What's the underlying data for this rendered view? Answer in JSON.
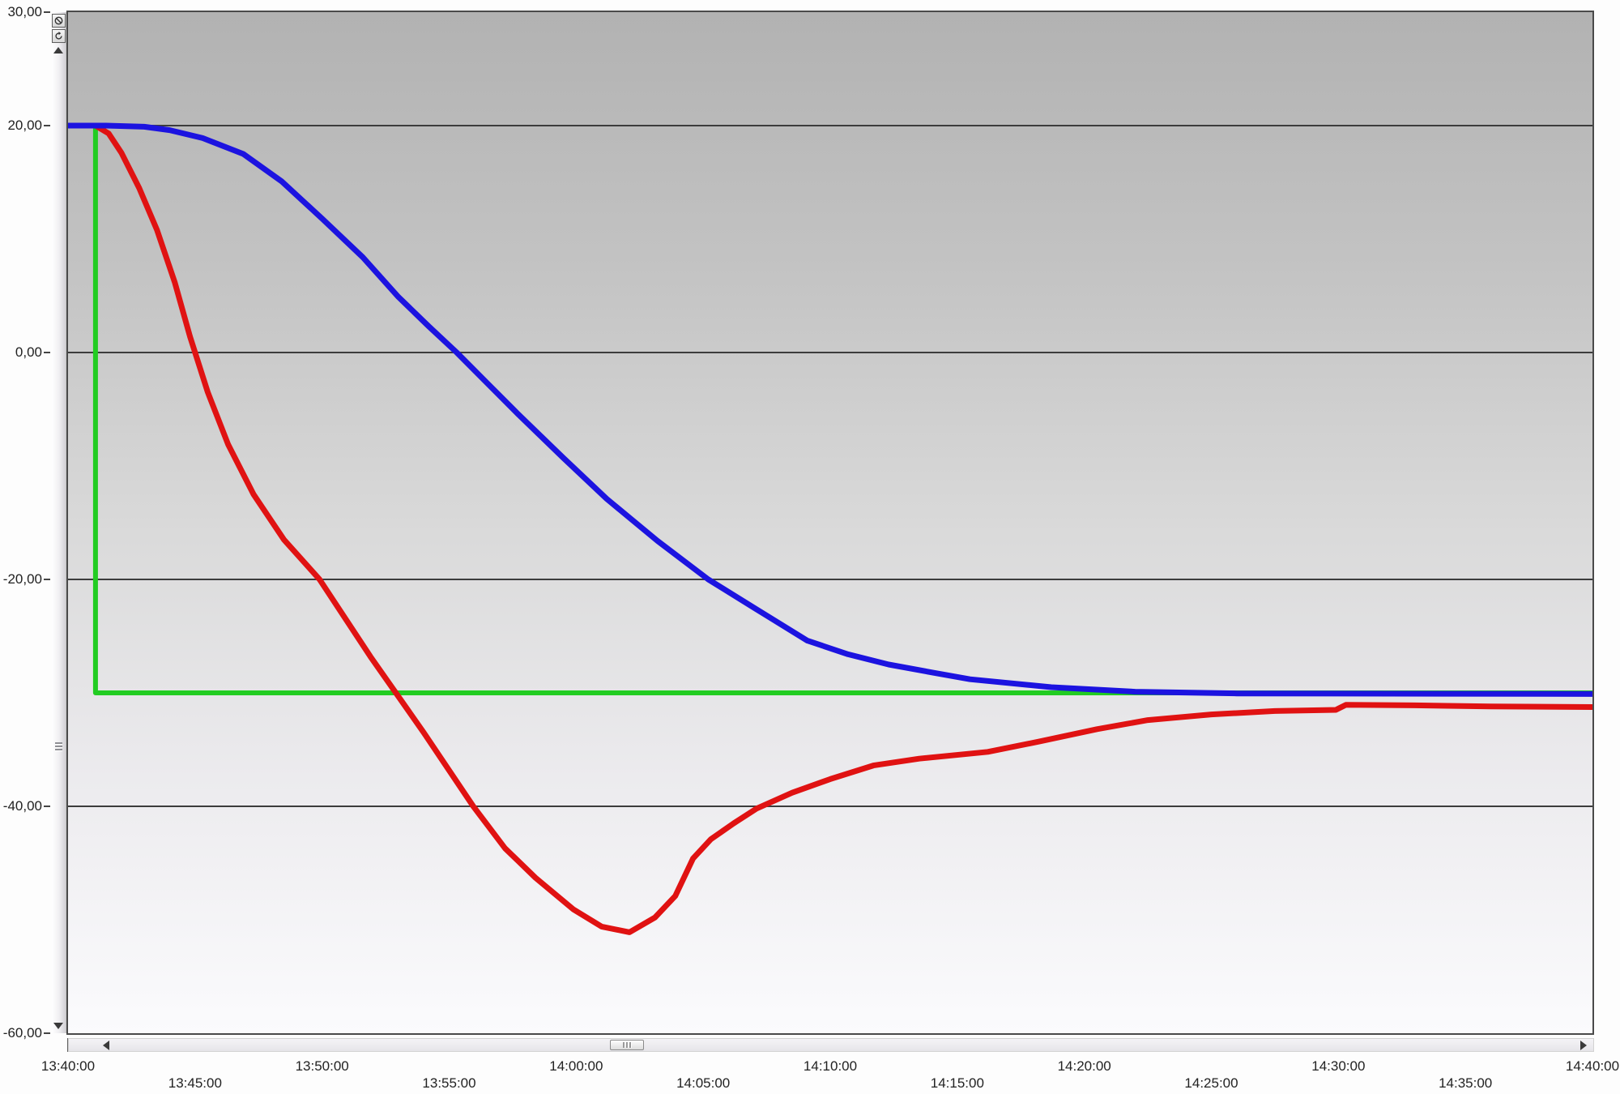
{
  "chart_data": {
    "type": "line",
    "title": "",
    "xlabel": "",
    "ylabel": "",
    "legend": "none",
    "grid": "horizontal",
    "x_axis": {
      "unit": "time",
      "range_start": "13:40:00",
      "range_end": "14:40:00",
      "tick_interval_minutes": 5,
      "ticks": [
        {
          "label": "13:40:00",
          "minutes": 0,
          "row": 1
        },
        {
          "label": "13:45:00",
          "minutes": 5,
          "row": 2
        },
        {
          "label": "13:50:00",
          "minutes": 10,
          "row": 1
        },
        {
          "label": "13:55:00",
          "minutes": 15,
          "row": 2
        },
        {
          "label": "14:00:00",
          "minutes": 20,
          "row": 1
        },
        {
          "label": "14:05:00",
          "minutes": 25,
          "row": 2
        },
        {
          "label": "14:10:00",
          "minutes": 30,
          "row": 1
        },
        {
          "label": "14:15:00",
          "minutes": 35,
          "row": 2
        },
        {
          "label": "14:20:00",
          "minutes": 40,
          "row": 1
        },
        {
          "label": "14:25:00",
          "minutes": 45,
          "row": 2
        },
        {
          "label": "14:30:00",
          "minutes": 50,
          "row": 1
        },
        {
          "label": "14:35:00",
          "minutes": 55,
          "row": 2
        },
        {
          "label": "14:40:00",
          "minutes": 60,
          "row": 1
        }
      ]
    },
    "y_axis": {
      "min": -60,
      "max": 30,
      "ticks": [
        {
          "label": "30,00",
          "value": 30
        },
        {
          "label": "20,00",
          "value": 20
        },
        {
          "label": "0,00",
          "value": 0
        },
        {
          "label": "-20,00",
          "value": -20
        },
        {
          "label": "-40,00",
          "value": -40
        },
        {
          "label": "-60,00",
          "value": -60
        }
      ],
      "gridlines": [
        20,
        0,
        -20,
        -40
      ]
    },
    "series": [
      {
        "name": "green-setpoint-step",
        "color": "#22cc22",
        "width": 6,
        "points": [
          [
            0,
            20
          ],
          [
            1.08,
            20
          ],
          [
            1.08,
            -30
          ],
          [
            60,
            -30
          ]
        ]
      },
      {
        "name": "red-fast-response-curve",
        "color": "#e01212",
        "width": 7,
        "points": [
          [
            0,
            20
          ],
          [
            1.08,
            20
          ],
          [
            1.6,
            19.3
          ],
          [
            2.1,
            17.6
          ],
          [
            2.8,
            14.5
          ],
          [
            3.5,
            10.8
          ],
          [
            4.2,
            6.2
          ],
          [
            4.8,
            1.4
          ],
          [
            5.5,
            -3.5
          ],
          [
            6.3,
            -8.1
          ],
          [
            7.3,
            -12.5
          ],
          [
            8.5,
            -16.5
          ],
          [
            9.9,
            -20
          ],
          [
            11.9,
            -26.8
          ],
          [
            14,
            -33.5
          ],
          [
            15.95,
            -40
          ],
          [
            17.2,
            -43.7
          ],
          [
            18.4,
            -46.3
          ],
          [
            19.9,
            -49.1
          ],
          [
            21,
            -50.6
          ],
          [
            22.1,
            -51.1
          ],
          [
            23.1,
            -49.8
          ],
          [
            23.9,
            -47.9
          ],
          [
            24.6,
            -44.6
          ],
          [
            25.3,
            -42.9
          ],
          [
            26.2,
            -41.5
          ],
          [
            27.1,
            -40.2
          ],
          [
            28.5,
            -38.8
          ],
          [
            30,
            -37.6
          ],
          [
            31.7,
            -36.4
          ],
          [
            33.5,
            -35.8
          ],
          [
            36.2,
            -35.2
          ],
          [
            38.2,
            -34.3
          ],
          [
            40.5,
            -33.2
          ],
          [
            42.5,
            -32.4
          ],
          [
            45,
            -31.9
          ],
          [
            47.5,
            -31.6
          ],
          [
            49.9,
            -31.5
          ],
          [
            50.3,
            -31.05
          ],
          [
            53,
            -31.1
          ],
          [
            56,
            -31.2
          ],
          [
            60,
            -31.25
          ]
        ]
      },
      {
        "name": "blue-slow-response-curve",
        "color": "#1c13e0",
        "width": 7,
        "points": [
          [
            0,
            20
          ],
          [
            1.5,
            20
          ],
          [
            3,
            19.9
          ],
          [
            4,
            19.6
          ],
          [
            5.3,
            18.9
          ],
          [
            6.9,
            17.5
          ],
          [
            8.4,
            15.1
          ],
          [
            10,
            11.8
          ],
          [
            11.6,
            8.4
          ],
          [
            13,
            4.9
          ],
          [
            14.2,
            2.3
          ],
          [
            15.3,
            0
          ],
          [
            16.5,
            -2.7
          ],
          [
            17.7,
            -5.4
          ],
          [
            19.5,
            -9.3
          ],
          [
            21.2,
            -12.9
          ],
          [
            23.2,
            -16.6
          ],
          [
            25.2,
            -20
          ],
          [
            27,
            -22.5
          ],
          [
            29.1,
            -25.4
          ],
          [
            30.7,
            -26.6
          ],
          [
            32.3,
            -27.5
          ],
          [
            34,
            -28.2
          ],
          [
            35.5,
            -28.8
          ],
          [
            38.7,
            -29.5
          ],
          [
            42,
            -29.9
          ],
          [
            46,
            -30.05
          ],
          [
            60,
            -30.1
          ]
        ]
      }
    ],
    "plot_style": {
      "background_top": "#b2b2b2",
      "background_bottom": "#fbfbfd",
      "gridline_color": "#3c3c3c",
      "border_color": "#4a4a4a"
    }
  },
  "toolbar": {
    "top_left_buttons": [
      {
        "icon": "circle-slash-icon"
      },
      {
        "icon": "rotate-reset-icon"
      }
    ],
    "bottom_left_buttons": [
      {
        "icon": "circle-slash-icon"
      },
      {
        "icon": "rotate-reset-icon"
      }
    ]
  },
  "scrollbars": {
    "vertical": {
      "up_arrow": true,
      "down_arrow": true,
      "grip_marks": 3
    },
    "horizontal": {
      "left_arrow": true,
      "right_arrow": true,
      "thumb_grip_marks": 3
    }
  }
}
